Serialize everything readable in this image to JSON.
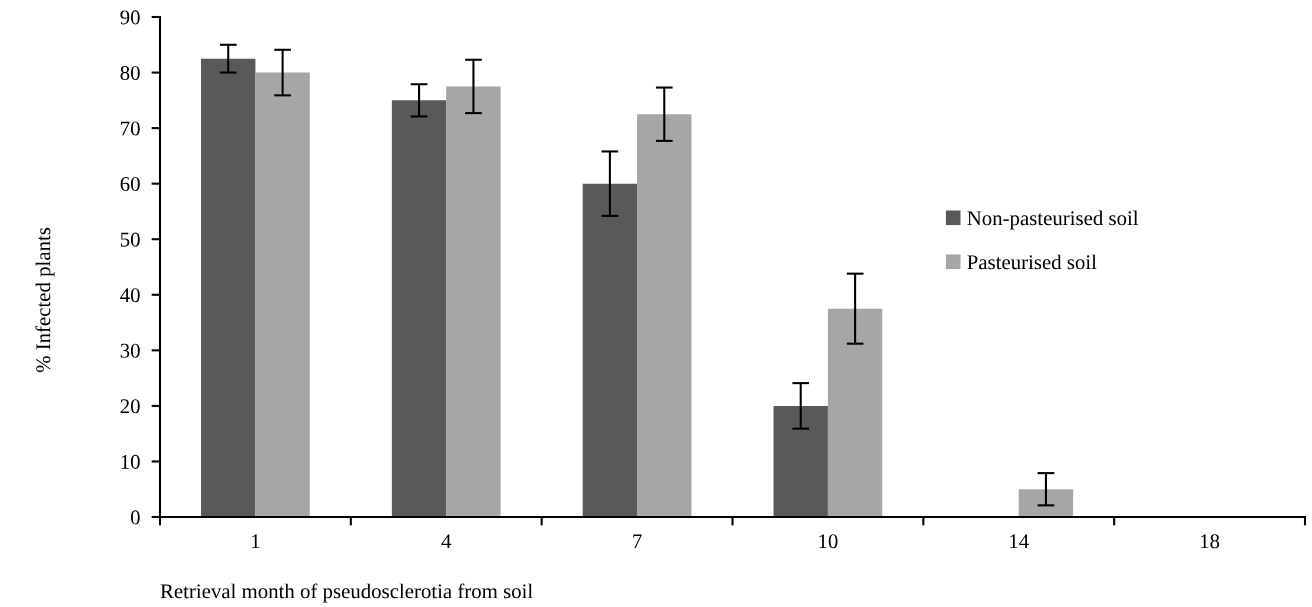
{
  "chart_data": {
    "type": "bar",
    "xlabel": "Retrieval month of pseudosclerotia from soil",
    "ylabel": "% Infected plants",
    "categories": [
      "1",
      "4",
      "7",
      "10",
      "14",
      "18"
    ],
    "series": [
      {
        "name": "Non-pasteurised soil",
        "color": "#595959",
        "values": [
          82.5,
          75,
          60,
          20,
          0,
          0
        ],
        "errors": [
          2.5,
          2.9,
          5.8,
          4.1,
          null,
          null
        ]
      },
      {
        "name": "Pasteurised soil",
        "color": "#a6a6a6",
        "values": [
          80,
          77.5,
          72.5,
          37.5,
          5,
          0
        ],
        "errors": [
          4.1,
          4.8,
          4.8,
          6.3,
          2.9,
          null
        ]
      }
    ],
    "ylim": [
      0,
      90
    ],
    "yticks": [
      0,
      10,
      20,
      30,
      40,
      50,
      60,
      70,
      80,
      90
    ],
    "grid": false,
    "legend": "right"
  }
}
